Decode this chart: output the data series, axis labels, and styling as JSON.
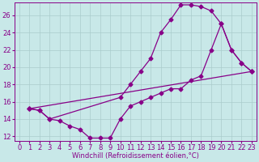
{
  "xlabel": "Windchill (Refroidissement éolien,°C)",
  "bg_color": "#c8e8e8",
  "line_color": "#880088",
  "grid_color": "#aacccc",
  "xlim": [
    -0.5,
    23.5
  ],
  "ylim": [
    11.5,
    27.5
  ],
  "xticks": [
    0,
    1,
    2,
    3,
    4,
    5,
    6,
    7,
    8,
    9,
    10,
    11,
    12,
    13,
    14,
    15,
    16,
    17,
    18,
    19,
    20,
    21,
    22,
    23
  ],
  "yticks": [
    12,
    14,
    16,
    18,
    20,
    22,
    24,
    26
  ],
  "line1_x": [
    1,
    2,
    3,
    4,
    5,
    6,
    7,
    8,
    9,
    10,
    11,
    12,
    13,
    14,
    15,
    16,
    17,
    18,
    19,
    20,
    21,
    22,
    23
  ],
  "line1_y": [
    15.2,
    15.0,
    14.0,
    13.8,
    13.2,
    12.8,
    11.8,
    11.8,
    11.8,
    14.0,
    15.5,
    16.0,
    16.5,
    17.0,
    17.5,
    17.5,
    18.5,
    19.0,
    22.0,
    25.0,
    22.0,
    20.5,
    19.5
  ],
  "line2_x": [
    1,
    2,
    3,
    10,
    11,
    12,
    13,
    14,
    15,
    16,
    17,
    18,
    19,
    20,
    21,
    22,
    23
  ],
  "line2_y": [
    15.2,
    15.0,
    14.0,
    16.5,
    18.0,
    19.5,
    21.0,
    24.0,
    25.5,
    27.2,
    27.2,
    27.0,
    26.5,
    25.0,
    22.0,
    20.5,
    19.5
  ],
  "line3_x": [
    1,
    23
  ],
  "line3_y": [
    15.2,
    19.5
  ]
}
